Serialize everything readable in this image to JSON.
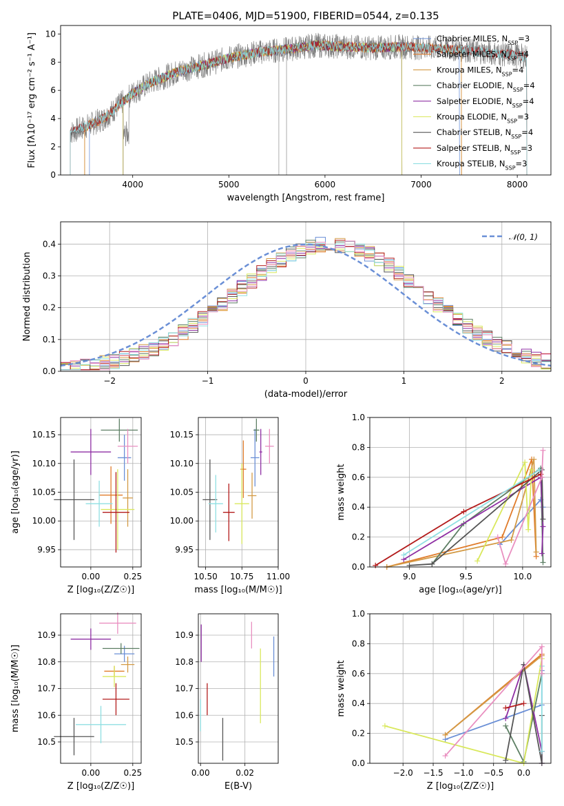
{
  "figure": {
    "title": "PLATE=0406, MJD=51900, FIBERID=0544, z=0.135"
  },
  "colors": {
    "chabrier_miles": "#6a8fd6",
    "salpeter_miles": "#e07b2a",
    "kroupa_miles": "#d39a45",
    "chabrier_elodie": "#5d7f64",
    "salpeter_elodie": "#8e2ea3",
    "kroupa_elodie": "#d9e85c",
    "chabrier_stelib": "#555555",
    "salpeter_stelib": "#b31b1b",
    "kroupa_stelib": "#8fdfe2",
    "pink": "#e98fc0",
    "data_spectrum": "#7f7f7f",
    "normal_curve": "#6a8fd6"
  },
  "chart_data": [
    {
      "id": "spectrum",
      "type": "line",
      "xlabel": "wavelength [Angstrom, rest frame]",
      "ylabel": "Flux [fλ10⁻¹⁷ erg cm⁻² s⁻¹ A⁻¹]",
      "xlim": [
        3250,
        8350
      ],
      "ylim": [
        0,
        10.6
      ],
      "xticks": [
        4000,
        5000,
        6000,
        7000,
        8000
      ],
      "yticks": [
        0,
        2,
        4,
        6,
        8,
        10
      ],
      "grid": false,
      "legend_position": "top-right",
      "legend": [
        {
          "label": "Chabrier MILES, N_SSP=3",
          "color_key": "chabrier_miles"
        },
        {
          "label": "Salpeter MILES, N_SSP=4",
          "color_key": "salpeter_miles"
        },
        {
          "label": "Kroupa MILES, N_SSP=4",
          "color_key": "kroupa_miles"
        },
        {
          "label": "Chabrier ELODIE, N_SSP=4",
          "color_key": "chabrier_elodie"
        },
        {
          "label": "Salpeter ELODIE, N_SSP=4",
          "color_key": "salpeter_elodie"
        },
        {
          "label": "Kroupa ELODIE, N_SSP=3",
          "color_key": "kroupa_elodie"
        },
        {
          "label": "Chabrier STELIB, N_SSP=4",
          "color_key": "chabrier_stelib"
        },
        {
          "label": "Salpeter STELIB, N_SSP=3",
          "color_key": "salpeter_stelib"
        },
        {
          "label": "Kroupa STELIB, N_SSP=3",
          "color_key": "kroupa_stelib"
        }
      ],
      "continuum": {
        "x": [
          3350,
          3500,
          3700,
          3900,
          4000,
          4200,
          4500,
          4800,
          5000,
          5300,
          5600,
          5900,
          6200,
          6500,
          6800,
          7100,
          7400,
          7800,
          8100
        ],
        "y": [
          3.0,
          3.4,
          4.0,
          5.2,
          5.8,
          6.6,
          7.4,
          7.9,
          8.3,
          8.7,
          8.9,
          9.2,
          9.1,
          9.0,
          9.1,
          9.0,
          8.9,
          8.6,
          8.4
        ]
      },
      "model_xrange": {
        "chabrier_miles": [
          3550,
          7400
        ],
        "salpeter_miles": [
          3500,
          7420
        ],
        "kroupa_miles": [
          3500,
          7420
        ],
        "chabrier_elodie": [
          3900,
          6800
        ],
        "salpeter_elodie": [
          3900,
          6800
        ],
        "kroupa_elodie": [
          3900,
          6800
        ],
        "chabrier_stelib": [
          3350,
          8100
        ],
        "salpeter_stelib": [
          3350,
          8100
        ],
        "kroupa_stelib": [
          3350,
          8100
        ]
      }
    },
    {
      "id": "residuals",
      "type": "histogram",
      "xlabel": "(data-model)/error",
      "ylabel": "Normed distribution",
      "xlim": [
        -2.5,
        2.5
      ],
      "ylim": [
        0,
        0.47
      ],
      "xticks": [
        -2,
        -1,
        0,
        1,
        2
      ],
      "yticks": [
        0.0,
        0.1,
        0.2,
        0.3,
        0.4
      ],
      "grid": true,
      "legend_position": "top-right",
      "reference_label": "𝒩(0, 1)",
      "reference": {
        "mean": 0,
        "sigma": 1
      }
    },
    {
      "id": "age_vs_Z",
      "type": "scatter",
      "xlabel": "Z [log₁₀(Z/Z☉)]",
      "ylabel": "age  [log₁₀(age/yr)]",
      "xlim": [
        -0.18,
        0.3
      ],
      "ylim": [
        9.92,
        10.18
      ],
      "xticks": [
        0.0,
        0.25
      ],
      "yticks": [
        9.95,
        10.0,
        10.05,
        10.1,
        10.15
      ],
      "grid": true,
      "points": [
        {
          "key": "chabrier_miles",
          "x": 0.2,
          "y": 10.11,
          "xerr": 0.04,
          "yerr": 0.04
        },
        {
          "key": "salpeter_miles",
          "x": 0.12,
          "y": 10.045,
          "xerr": 0.07,
          "yerr": 0.05
        },
        {
          "key": "kroupa_miles",
          "x": 0.22,
          "y": 10.04,
          "xerr": 0.03,
          "yerr": 0.05
        },
        {
          "key": "chabrier_elodie",
          "x": 0.17,
          "y": 10.158,
          "xerr": 0.11,
          "yerr": 0.02
        },
        {
          "key": "salpeter_elodie",
          "x": 0.0,
          "y": 10.12,
          "xerr": 0.12,
          "yerr": 0.04
        },
        {
          "key": "kroupa_elodie",
          "x": 0.16,
          "y": 10.02,
          "xerr": 0.1,
          "yerr": 0.07
        },
        {
          "key": "chabrier_stelib",
          "x": -0.1,
          "y": 10.037,
          "xerr": 0.12,
          "yerr": 0.07
        },
        {
          "key": "salpeter_stelib",
          "x": 0.15,
          "y": 10.015,
          "xerr": 0.08,
          "yerr": 0.07
        },
        {
          "key": "kroupa_stelib",
          "x": 0.05,
          "y": 10.03,
          "xerr": 0.08,
          "yerr": 0.04
        },
        {
          "key": "pink",
          "x": 0.22,
          "y": 10.13,
          "xerr": 0.06,
          "yerr": 0.03
        }
      ]
    },
    {
      "id": "age_vs_mass",
      "type": "scatter",
      "xlabel": "mass [log₁₀(M/M☉)]",
      "ylabel": "",
      "xlim": [
        10.45,
        11.0
      ],
      "ylim": [
        9.92,
        10.18
      ],
      "xticks": [
        10.5,
        10.75,
        11.0
      ],
      "yticks": [
        9.95,
        10.0,
        10.05,
        10.1,
        10.15
      ],
      "grid": true,
      "points": [
        {
          "key": "chabrier_miles",
          "x": 10.84,
          "y": 10.11,
          "xerr": 0.03,
          "yerr": 0.05
        },
        {
          "key": "salpeter_miles",
          "x": 10.76,
          "y": 10.09,
          "xerr": 0.02,
          "yerr": 0.05
        },
        {
          "key": "kroupa_miles",
          "x": 10.82,
          "y": 10.044,
          "xerr": 0.03,
          "yerr": 0.04
        },
        {
          "key": "chabrier_elodie",
          "x": 10.85,
          "y": 10.158,
          "xerr": 0.02,
          "yerr": 0.02
        },
        {
          "key": "salpeter_elodie",
          "x": 10.88,
          "y": 10.12,
          "xerr": 0.01,
          "yerr": 0.04
        },
        {
          "key": "kroupa_elodie",
          "x": 10.75,
          "y": 10.03,
          "xerr": 0.05,
          "yerr": 0.07
        },
        {
          "key": "chabrier_stelib",
          "x": 10.53,
          "y": 10.037,
          "xerr": 0.05,
          "yerr": 0.07
        },
        {
          "key": "salpeter_stelib",
          "x": 10.66,
          "y": 10.015,
          "xerr": 0.04,
          "yerr": 0.05
        },
        {
          "key": "kroupa_stelib",
          "x": 10.57,
          "y": 10.03,
          "xerr": 0.05,
          "yerr": 0.05
        },
        {
          "key": "pink",
          "x": 10.94,
          "y": 10.13,
          "xerr": 0.03,
          "yerr": 0.03
        }
      ]
    },
    {
      "id": "mass_weight_vs_age",
      "type": "line",
      "xlabel": "age  [log₁₀(age/yr)]",
      "ylabel": "mass weight",
      "xlim": [
        8.65,
        10.25
      ],
      "ylim": [
        0.0,
        1.0
      ],
      "xticks": [
        9.0,
        9.5,
        10.0
      ],
      "yticks": [
        0.0,
        0.2,
        0.4,
        0.6,
        0.8,
        1.0
      ],
      "grid": true,
      "series": [
        {
          "key": "chabrier_miles",
          "x": [
            9.8,
            10.16,
            10.18
          ],
          "y": [
            0.15,
            0.45,
            0.4
          ]
        },
        {
          "key": "salpeter_miles",
          "x": [
            8.8,
            9.82,
            10.08,
            10.12
          ],
          "y": [
            0.0,
            0.2,
            0.72,
            0.07
          ]
        },
        {
          "key": "kroupa_miles",
          "x": [
            8.8,
            9.9,
            10.1,
            10.12
          ],
          "y": [
            0.0,
            0.18,
            0.72,
            0.1
          ]
        },
        {
          "key": "chabrier_elodie",
          "x": [
            9.2,
            9.48,
            10.16,
            10.18
          ],
          "y": [
            0.02,
            0.29,
            0.66,
            0.03
          ]
        },
        {
          "key": "salpeter_elodie",
          "x": [
            8.95,
            10.16,
            10.18,
            10.17
          ],
          "y": [
            0.05,
            0.6,
            0.27,
            0.09
          ]
        },
        {
          "key": "kroupa_elodie",
          "x": [
            9.6,
            10.02,
            10.05,
            10.08
          ],
          "y": [
            0.04,
            0.7,
            0.25,
            0.65
          ]
        },
        {
          "key": "chabrier_stelib",
          "x": [
            9.0,
            9.2,
            10.17,
            10.18
          ],
          "y": [
            0.01,
            0.02,
            0.65,
            0.32
          ]
        },
        {
          "key": "salpeter_stelib",
          "x": [
            8.7,
            9.48,
            10.16
          ],
          "y": [
            0.01,
            0.37,
            0.62
          ]
        },
        {
          "key": "kroupa_stelib",
          "x": [
            8.95,
            10.15
          ],
          "y": [
            0.08,
            0.65
          ]
        },
        {
          "key": "pink",
          "x": [
            9.78,
            9.85,
            10.17,
            10.18
          ],
          "y": [
            0.2,
            0.02,
            0.6,
            0.78
          ]
        }
      ]
    },
    {
      "id": "mass_vs_Z",
      "type": "scatter",
      "xlabel": "Z [log₁₀(Z/Z☉)]",
      "ylabel": "mass [log₁₀(M/M☉)]",
      "xlim": [
        -0.18,
        0.3
      ],
      "ylim": [
        10.42,
        10.98
      ],
      "xticks": [
        0.0,
        0.25
      ],
      "yticks": [
        10.5,
        10.6,
        10.7,
        10.8,
        10.9
      ],
      "grid": true,
      "points": [
        {
          "key": "chabrier_miles",
          "x": 0.2,
          "y": 10.83,
          "xerr": 0.06,
          "yerr": 0.03
        },
        {
          "key": "salpeter_miles",
          "x": 0.14,
          "y": 10.765,
          "xerr": 0.06,
          "yerr": 0.02
        },
        {
          "key": "kroupa_miles",
          "x": 0.22,
          "y": 10.79,
          "xerr": 0.04,
          "yerr": 0.03
        },
        {
          "key": "chabrier_elodie",
          "x": 0.18,
          "y": 10.85,
          "xerr": 0.11,
          "yerr": 0.02
        },
        {
          "key": "salpeter_elodie",
          "x": -0.0,
          "y": 10.885,
          "xerr": 0.12,
          "yerr": 0.04
        },
        {
          "key": "kroupa_elodie",
          "x": 0.14,
          "y": 10.745,
          "xerr": 0.07,
          "yerr": 0.04
        },
        {
          "key": "chabrier_stelib",
          "x": -0.1,
          "y": 10.52,
          "xerr": 0.12,
          "yerr": 0.07
        },
        {
          "key": "salpeter_stelib",
          "x": 0.15,
          "y": 10.66,
          "xerr": 0.08,
          "yerr": 0.06
        },
        {
          "key": "kroupa_stelib",
          "x": 0.06,
          "y": 10.565,
          "xerr": 0.15,
          "yerr": 0.07
        },
        {
          "key": "pink",
          "x": 0.16,
          "y": 10.945,
          "xerr": 0.11,
          "yerr": 0.04
        }
      ]
    },
    {
      "id": "mass_vs_ebv",
      "type": "scatter",
      "xlabel": "E(B-V)",
      "ylabel": "",
      "xlim": [
        -0.001,
        0.035
      ],
      "ylim": [
        10.42,
        10.98
      ],
      "xticks": [
        0.0,
        0.02
      ],
      "yticks": [
        10.5,
        10.6,
        10.7,
        10.8,
        10.9
      ],
      "grid": true,
      "points": [
        {
          "key": "chabrier_miles",
          "x": 0.033,
          "y": 10.82,
          "xerr": 0.0,
          "yerr": 0.075
        },
        {
          "key": "salpeter_elodie",
          "x": 0.0003,
          "y": 10.87,
          "xerr": 0.0,
          "yerr": 0.07
        },
        {
          "key": "kroupa_elodie",
          "x": 0.027,
          "y": 10.71,
          "xerr": 0.0,
          "yerr": 0.14
        },
        {
          "key": "chabrier_stelib",
          "x": 0.01,
          "y": 10.51,
          "xerr": 0.0,
          "yerr": 0.08
        },
        {
          "key": "salpeter_stelib",
          "x": 0.003,
          "y": 10.66,
          "xerr": 0.0,
          "yerr": 0.06
        },
        {
          "key": "pink",
          "x": 0.023,
          "y": 10.9,
          "xerr": 0.0,
          "yerr": 0.05
        },
        {
          "key": "kroupa_stelib",
          "x": 0.0,
          "y": 10.6,
          "xerr": 0.0,
          "yerr": 0.06
        }
      ]
    },
    {
      "id": "mass_weight_vs_Z",
      "type": "line",
      "xlabel": "Z [log₁₀(Z/Z☉)]",
      "ylabel": "mass weight",
      "xlim": [
        -2.55,
        0.45
      ],
      "ylim": [
        0.0,
        1.0
      ],
      "xticks": [
        -2.0,
        -1.5,
        -1.0,
        -0.5,
        0.0
      ],
      "yticks": [
        0.0,
        0.2,
        0.4,
        0.6,
        0.8,
        1.0
      ],
      "grid": true,
      "series": [
        {
          "key": "chabrier_miles",
          "x": [
            -1.3,
            0.3,
            0.3
          ],
          "y": [
            0.16,
            0.39,
            0.62
          ]
        },
        {
          "key": "salpeter_miles",
          "x": [
            -1.3,
            0.3
          ],
          "y": [
            0.19,
            0.73
          ]
        },
        {
          "key": "kroupa_miles",
          "x": [
            -1.3,
            0.3
          ],
          "y": [
            0.19,
            0.72
          ]
        },
        {
          "key": "chabrier_elodie",
          "x": [
            -0.3,
            0.0,
            0.3
          ],
          "y": [
            0.25,
            0.01,
            0.6
          ]
        },
        {
          "key": "salpeter_elodie",
          "x": [
            -0.3,
            0.0,
            0.3,
            0.3
          ],
          "y": [
            0.3,
            0.66,
            0.08,
            0.0
          ]
        },
        {
          "key": "kroupa_elodie",
          "x": [
            -2.3,
            0.0,
            0.3
          ],
          "y": [
            0.25,
            0.0,
            0.7
          ]
        },
        {
          "key": "chabrier_stelib",
          "x": [
            -0.3,
            0.0,
            0.3,
            0.3
          ],
          "y": [
            0.02,
            0.66,
            0.0,
            0.32
          ]
        },
        {
          "key": "salpeter_stelib",
          "x": [
            -0.3,
            0.0
          ],
          "y": [
            0.37,
            0.4
          ]
        },
        {
          "key": "kroupa_stelib",
          "x": [
            0.3,
            0.3
          ],
          "y": [
            0.08,
            0.65
          ]
        },
        {
          "key": "pink",
          "x": [
            -1.3,
            0.3,
            0.3
          ],
          "y": [
            0.05,
            0.78,
            0.6
          ]
        }
      ]
    }
  ]
}
